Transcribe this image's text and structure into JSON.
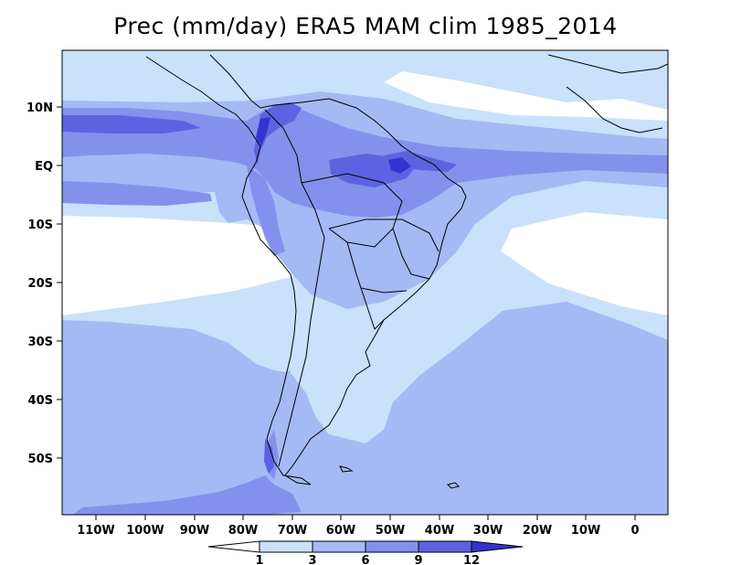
{
  "title": "Prec (mm/day) ERA5 MAM clim 1985_2014",
  "axes": {
    "lon_labels": [
      "110W",
      "100W",
      "90W",
      "80W",
      "70W",
      "60W",
      "50W",
      "40W",
      "30W",
      "20W",
      "10W",
      "0"
    ],
    "lat_labels": [
      "10N",
      "EQ",
      "10S",
      "20S",
      "30S",
      "40S",
      "50S"
    ]
  },
  "colorbar": {
    "levels": [
      "1",
      "3",
      "6",
      "9",
      "12"
    ],
    "colors": [
      "#ffffff",
      "#c9e1fb",
      "#a5b9f5",
      "#8491ec",
      "#5d63e0",
      "#3333d0"
    ]
  },
  "chart_data": {
    "type": "heatmap",
    "title": "Prec (mm/day) ERA5 MAM clim 1985_2014",
    "variable": "Precipitation",
    "units": "mm/day",
    "season": "MAM",
    "period": "1985_2014",
    "dataset": "ERA5",
    "lon_range": [
      -117,
      6
    ],
    "lat_range": [
      -59,
      20
    ],
    "contour_levels": [
      1,
      3,
      6,
      9,
      12
    ]
  }
}
